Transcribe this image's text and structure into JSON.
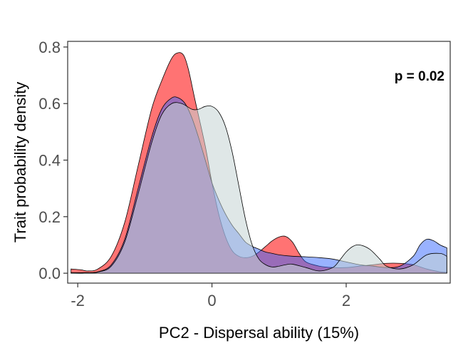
{
  "chart_data": {
    "type": "area",
    "xlabel": "PC2 - Dispersal ability (15%)",
    "ylabel": "Trait probability density",
    "annotation": "p = 0.02",
    "xlim": [
      -2.15,
      3.55
    ],
    "ylim": [
      -0.035,
      0.82
    ],
    "x_ticks": [
      -2,
      0,
      2
    ],
    "x_tick_labels": [
      "-2",
      "0",
      "2"
    ],
    "y_ticks": [
      0.0,
      0.2,
      0.4,
      0.6,
      0.8
    ],
    "y_tick_labels": [
      "0.0",
      "0.2",
      "0.4",
      "0.6",
      "0.8"
    ],
    "grid": false,
    "legend": "none",
    "series": [
      {
        "color": "#ff0000",
        "opacity": 0.55,
        "x": [
          -2.1,
          -1.95,
          -1.85,
          -1.7,
          -1.5,
          -1.3,
          -1.1,
          -0.9,
          -0.75,
          -0.6,
          -0.5,
          -0.42,
          -0.35,
          -0.25,
          -0.1,
          0.0,
          0.1,
          0.2,
          0.3,
          0.4,
          0.5,
          0.6,
          0.7,
          0.8,
          0.9,
          1.0,
          1.1,
          1.2,
          1.3,
          1.4,
          1.6,
          1.8,
          2.0,
          2.2,
          2.4,
          2.6,
          2.8,
          3.0,
          3.2,
          3.4,
          3.5
        ],
        "y": [
          0.015,
          0.012,
          0.008,
          0.015,
          0.06,
          0.18,
          0.38,
          0.58,
          0.68,
          0.76,
          0.78,
          0.77,
          0.72,
          0.61,
          0.45,
          0.32,
          0.21,
          0.13,
          0.08,
          0.06,
          0.055,
          0.06,
          0.075,
          0.095,
          0.115,
          0.128,
          0.13,
          0.11,
          0.07,
          0.04,
          0.025,
          0.02,
          0.02,
          0.025,
          0.03,
          0.035,
          0.035,
          0.03,
          0.015,
          0.005,
          0.003
        ]
      },
      {
        "color": "#3366ff",
        "opacity": 0.5,
        "x": [
          -2.1,
          -1.9,
          -1.7,
          -1.5,
          -1.3,
          -1.1,
          -0.9,
          -0.75,
          -0.6,
          -0.5,
          -0.4,
          -0.3,
          -0.2,
          -0.1,
          0.0,
          0.1,
          0.2,
          0.3,
          0.4,
          0.5,
          0.6,
          0.7,
          0.8,
          0.9,
          1.0,
          1.2,
          1.4,
          1.6,
          1.8,
          2.0,
          2.2,
          2.4,
          2.6,
          2.8,
          3.0,
          3.1,
          3.2,
          3.3,
          3.4,
          3.5
        ],
        "y": [
          0.002,
          0.002,
          0.005,
          0.03,
          0.12,
          0.3,
          0.48,
          0.58,
          0.62,
          0.62,
          0.6,
          0.55,
          0.48,
          0.4,
          0.32,
          0.26,
          0.21,
          0.17,
          0.14,
          0.11,
          0.095,
          0.085,
          0.075,
          0.07,
          0.065,
          0.06,
          0.058,
          0.055,
          0.05,
          0.04,
          0.03,
          0.025,
          0.02,
          0.025,
          0.06,
          0.1,
          0.12,
          0.115,
          0.1,
          0.09
        ]
      },
      {
        "color": "#c5d3d3",
        "opacity": 0.55,
        "x": [
          -2.1,
          -1.9,
          -1.7,
          -1.5,
          -1.3,
          -1.1,
          -0.9,
          -0.75,
          -0.6,
          -0.45,
          -0.3,
          -0.2,
          -0.1,
          0.0,
          0.1,
          0.2,
          0.3,
          0.4,
          0.5,
          0.6,
          0.7,
          0.8,
          0.9,
          1.0,
          1.1,
          1.2,
          1.4,
          1.6,
          1.8,
          1.9,
          2.0,
          2.1,
          2.2,
          2.35,
          2.5,
          2.6,
          2.8,
          3.0,
          3.2,
          3.4,
          3.5
        ],
        "y": [
          0.0,
          0.0,
          0.004,
          0.025,
          0.11,
          0.28,
          0.46,
          0.56,
          0.6,
          0.6,
          0.58,
          0.58,
          0.59,
          0.59,
          0.57,
          0.52,
          0.43,
          0.31,
          0.19,
          0.1,
          0.05,
          0.03,
          0.022,
          0.025,
          0.03,
          0.032,
          0.02,
          0.008,
          0.02,
          0.045,
          0.075,
          0.095,
          0.1,
          0.085,
          0.05,
          0.025,
          0.015,
          0.03,
          0.065,
          0.07,
          0.06
        ]
      }
    ]
  }
}
